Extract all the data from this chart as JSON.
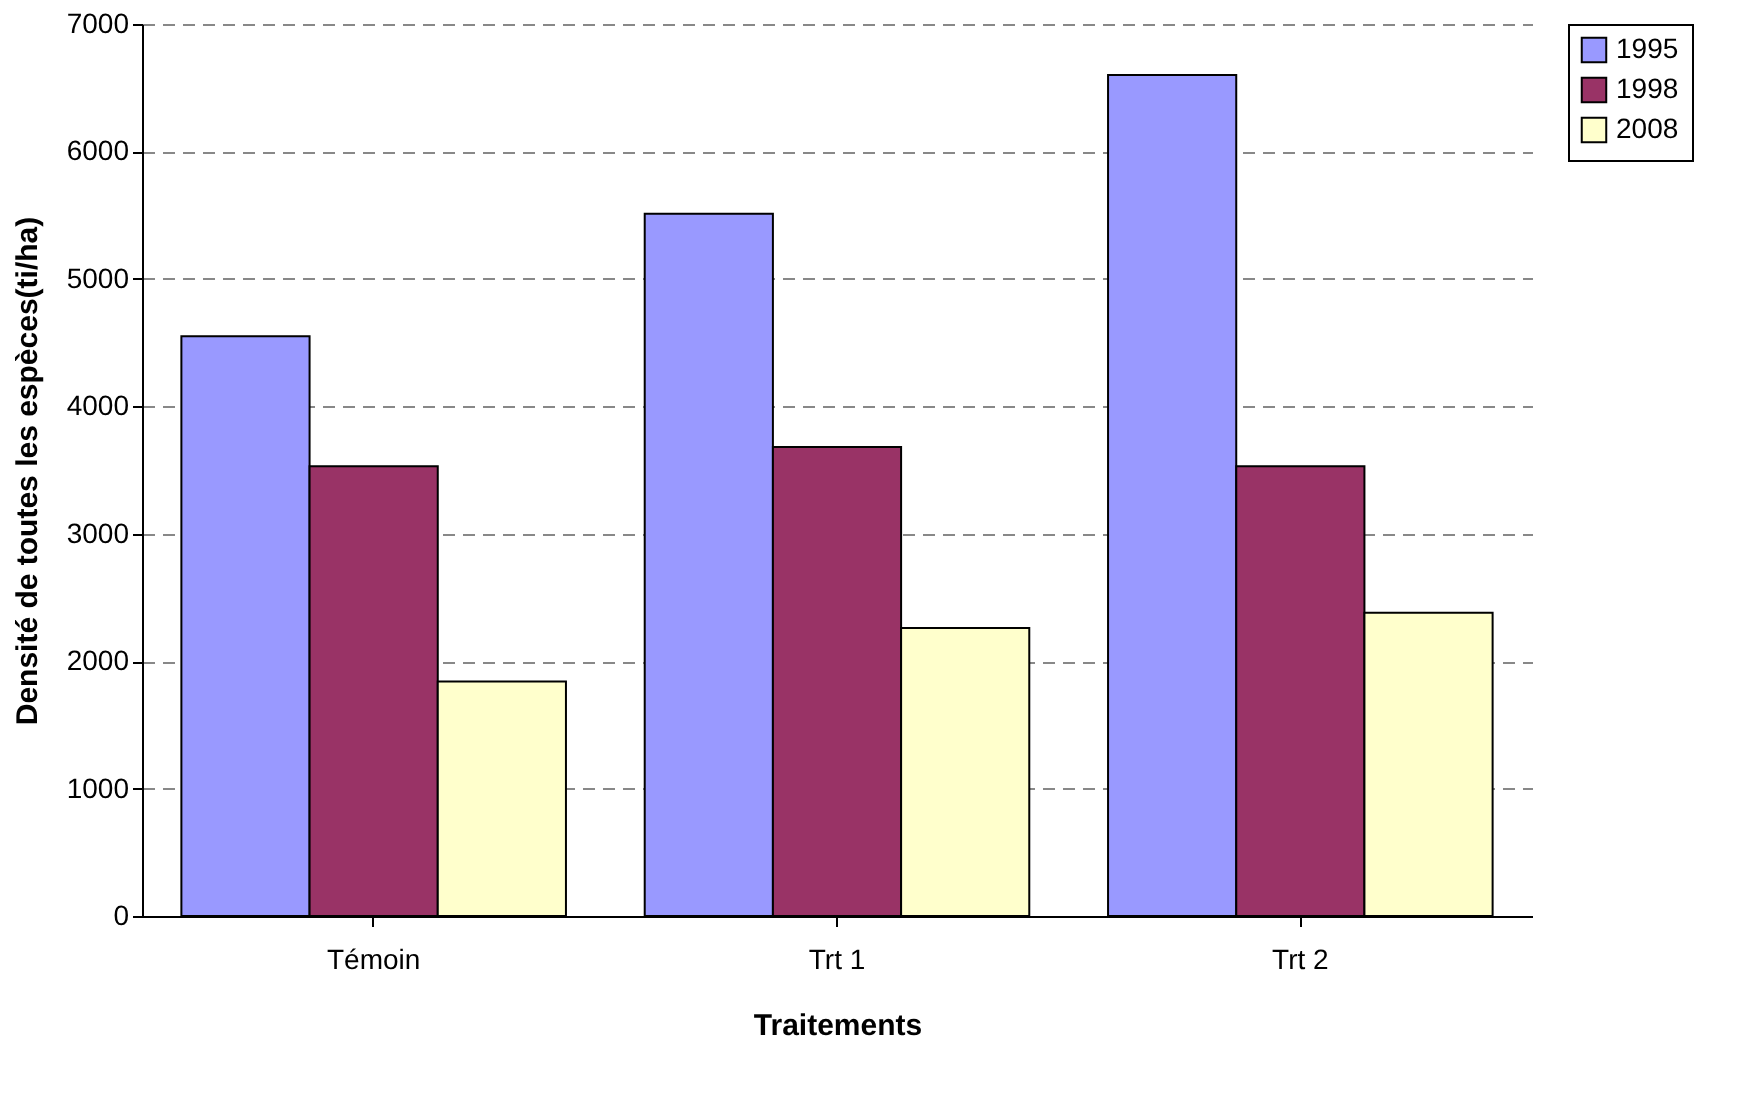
{
  "chart_data": {
    "type": "bar",
    "xlabel": "Traitements",
    "ylabel": "Densité de toutes les espèces(ti/ha)",
    "categories": [
      "Témoin",
      "Trt 1",
      "Trt 2"
    ],
    "series": [
      {
        "name": "1995",
        "color": "#9999ff",
        "values": [
          4550,
          5510,
          6600
        ]
      },
      {
        "name": "1998",
        "color": "#993366",
        "values": [
          3530,
          3680,
          3530
        ]
      },
      {
        "name": "2008",
        "color": "#ffffcc",
        "values": [
          1840,
          2260,
          2380
        ]
      }
    ],
    "ylim": [
      0,
      7000
    ],
    "yticks": [
      0,
      1000,
      2000,
      3000,
      4000,
      5000,
      6000,
      7000
    ],
    "grid": "y",
    "legend": "right"
  }
}
